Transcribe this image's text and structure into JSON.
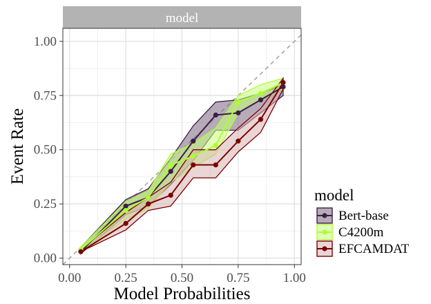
{
  "chart_data": {
    "type": "line",
    "facet_label": "model",
    "xlabel": "Model Probabilities",
    "ylabel": "Event Rate",
    "xlim": [
      -0.03,
      1.03
    ],
    "ylim": [
      -0.03,
      1.06
    ],
    "x_ticks": [
      0,
      0.25,
      0.5,
      0.75,
      1
    ],
    "x_tick_labels": [
      "0.00",
      "0.25",
      "0.50",
      "0.75",
      "1.00"
    ],
    "y_ticks": [
      0,
      0.25,
      0.5,
      0.75,
      1
    ],
    "y_tick_labels": [
      "0.00",
      "0.25",
      "0.50",
      "0.75",
      "1.00"
    ],
    "grid": true,
    "reference_line": "diagonal",
    "legend": {
      "title": "model",
      "position": "right"
    },
    "series": [
      {
        "name": "Bert-base",
        "color": "#3d1d45",
        "fill": "#7b6680",
        "x": [
          0.05,
          0.25,
          0.35,
          0.45,
          0.55,
          0.65,
          0.75,
          0.85,
          0.95
        ],
        "y": [
          0.03,
          0.24,
          0.28,
          0.4,
          0.54,
          0.66,
          0.67,
          0.73,
          0.79
        ],
        "lower": [
          0.02,
          0.2,
          0.24,
          0.34,
          0.45,
          0.59,
          0.59,
          0.67,
          0.75
        ],
        "upper": [
          0.05,
          0.27,
          0.32,
          0.46,
          0.61,
          0.72,
          0.73,
          0.76,
          0.8
        ]
      },
      {
        "name": "C4200m",
        "color": "#adff2f",
        "fill": "#c8ff80",
        "x": [
          0.05,
          0.25,
          0.35,
          0.45,
          0.55,
          0.65,
          0.75,
          0.85,
          0.95
        ],
        "y": [
          0.04,
          0.22,
          0.28,
          0.43,
          0.47,
          0.52,
          0.72,
          0.76,
          0.81
        ],
        "lower": [
          0.03,
          0.18,
          0.23,
          0.35,
          0.42,
          0.48,
          0.67,
          0.73,
          0.78
        ],
        "upper": [
          0.05,
          0.26,
          0.31,
          0.48,
          0.53,
          0.6,
          0.75,
          0.8,
          0.83
        ]
      },
      {
        "name": "EFCAMDAT",
        "color": "#7a0000",
        "fill": "#d9b3b3",
        "x": [
          0.05,
          0.25,
          0.35,
          0.45,
          0.55,
          0.65,
          0.75,
          0.85,
          0.95
        ],
        "y": [
          0.03,
          0.16,
          0.25,
          0.29,
          0.43,
          0.43,
          0.54,
          0.64,
          0.81
        ],
        "lower": [
          0.03,
          0.13,
          0.22,
          0.24,
          0.37,
          0.37,
          0.49,
          0.58,
          0.78
        ],
        "upper": [
          0.04,
          0.21,
          0.28,
          0.35,
          0.5,
          0.5,
          0.6,
          0.69,
          0.83
        ]
      }
    ]
  }
}
